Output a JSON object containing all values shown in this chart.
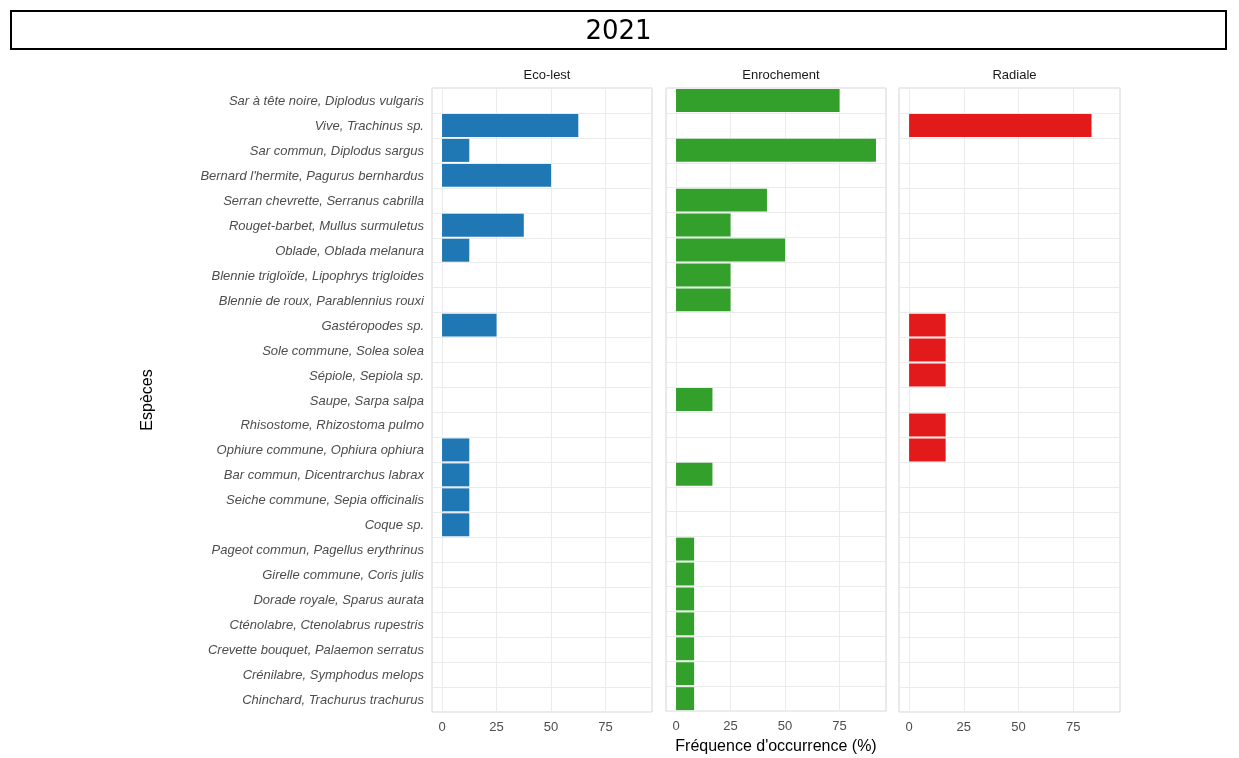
{
  "chart_data": [
    {
      "type": "bar",
      "orientation": "horizontal",
      "title": "2021",
      "subtitle": "Eco-lest",
      "ylabel": "Espèces",
      "categories": [
        "Sar à tête noire, Diplodus vulgaris",
        "Vive, Trachinus sp.",
        "Sar commun, Diplodus sargus",
        "Bernard l'hermite, Pagurus bernhardus",
        "Serran chevrette, Serranus cabrilla",
        "Rouget-barbet, Mullus surmuletus",
        "Oblade, Oblada melanura",
        "Blennie trigloïde, Lipophrys trigloides",
        "Blennie de roux, Parablennius rouxi",
        "Gastéropodes sp.",
        "Sole commune, Solea solea",
        "Sépiole, Sepiola sp.",
        "Saupe, Sarpa salpa",
        "Rhisostome, Rhizostoma pulmo",
        "Ophiure commune, Ophiura ophiura",
        "Bar commun, Dicentrarchus labrax",
        "Seiche commune, Sepia officinalis",
        "Coque sp.",
        "Pageot commun, Pagellus erythrinus",
        "Girelle commune, Coris julis",
        "Dorade royale, Sparus aurata",
        "Cténolabre, Ctenolabrus rupestris",
        "Crevette bouquet, Palaemon serratus",
        "Crénilabre, Symphodus melops",
        "Chinchard, Trachurus trachurus"
      ],
      "values": [
        null,
        62.5,
        12.5,
        50,
        null,
        37.5,
        12.5,
        null,
        null,
        25,
        null,
        null,
        null,
        null,
        12.5,
        12.5,
        12.5,
        12.5,
        null,
        null,
        null,
        null,
        null,
        null,
        null
      ],
      "color": "#1f78b4",
      "xlim": [
        -4.6,
        96.3
      ],
      "xticks": [
        0,
        25,
        50,
        75
      ],
      "grid": true
    },
    {
      "type": "bar",
      "orientation": "horizontal",
      "subtitle": "Enrochement",
      "xlabel": "Fréquence d'occurrence (%)",
      "tick_labels": "x",
      "values": [
        75,
        null,
        91.7,
        null,
        41.7,
        25,
        50,
        25,
        25,
        null,
        null,
        null,
        16.7,
        null,
        null,
        16.7,
        null,
        null,
        8.3,
        8.3,
        8.3,
        8.3,
        8.3,
        8.3,
        8.3
      ],
      "color": "#33a02c",
      "xlim": [
        -4.6,
        96.3
      ],
      "xticks": [
        0,
        25,
        50,
        75
      ],
      "grid": true
    },
    {
      "type": "bar",
      "orientation": "horizontal",
      "subtitle": "Radiale",
      "tick_labels": "x",
      "values": [
        null,
        83.3,
        null,
        null,
        null,
        null,
        null,
        null,
        null,
        16.7,
        16.7,
        16.7,
        null,
        16.7,
        16.7,
        null,
        null,
        null,
        null,
        null,
        null,
        null,
        null,
        null,
        null
      ],
      "color": "#e31a1c",
      "xlim": [
        -4.6,
        96.3
      ],
      "xticks": [
        0,
        25,
        50,
        75
      ],
      "grid": true
    }
  ]
}
